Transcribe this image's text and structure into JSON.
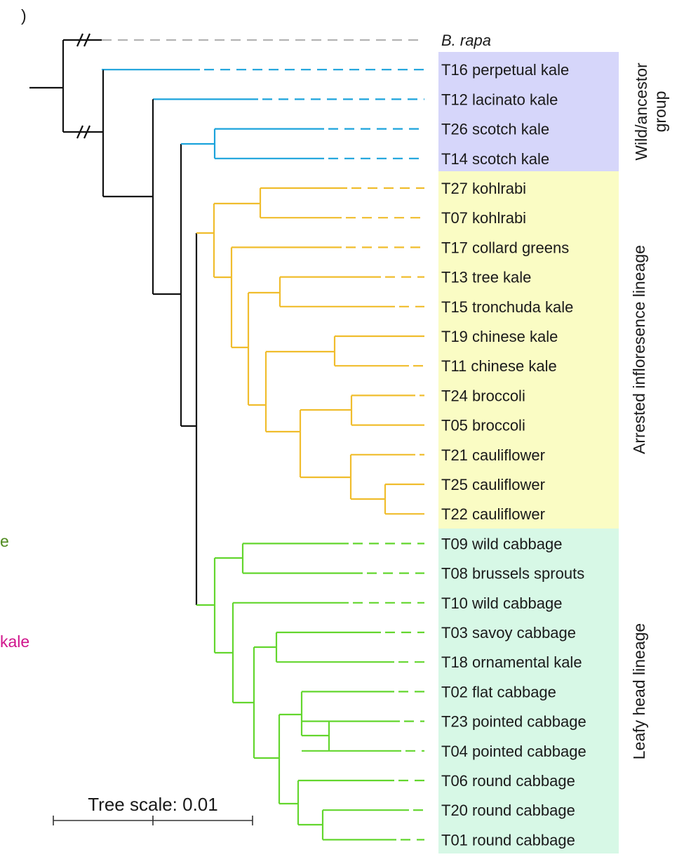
{
  "colors": {
    "outgroup": "#b3b3b3",
    "wild": "#1ba3dc",
    "arrested": "#f0bd2d",
    "leafy": "#63d62e",
    "trunk": "#111111",
    "band_wild": "#d6d6fa",
    "band_arrested": "#fafcc4",
    "band_leafy": "#d7f8e6",
    "cut_green": "#4f8a1f",
    "cut_magenta": "#d0148c"
  },
  "taxa": [
    {
      "label": "B. rapa",
      "italic": true,
      "group": "outgroup"
    },
    {
      "label": "T16 perpetual kale",
      "group": "wild"
    },
    {
      "label": "T12 lacinato kale",
      "group": "wild"
    },
    {
      "label": "T26 scotch kale",
      "group": "wild"
    },
    {
      "label": "T14 scotch kale",
      "group": "wild"
    },
    {
      "label": "T27 kohlrabi",
      "group": "arrested"
    },
    {
      "label": "T07 kohlrabi",
      "group": "arrested"
    },
    {
      "label": "T17 collard greens",
      "group": "arrested"
    },
    {
      "label": "T13 tree kale",
      "group": "arrested"
    },
    {
      "label": "T15 tronchuda kale",
      "group": "arrested"
    },
    {
      "label": "T19 chinese kale",
      "group": "arrested"
    },
    {
      "label": "T11 chinese kale",
      "group": "arrested"
    },
    {
      "label": "T24 broccoli",
      "group": "arrested"
    },
    {
      "label": "T05 broccoli",
      "group": "arrested"
    },
    {
      "label": "T21 cauliflower",
      "group": "arrested"
    },
    {
      "label": "T25 cauliflower",
      "group": "arrested"
    },
    {
      "label": "T22 cauliflower",
      "group": "arrested"
    },
    {
      "label": "T09 wild cabbage",
      "group": "leafy"
    },
    {
      "label": "T08 brussels sprouts",
      "group": "leafy"
    },
    {
      "label": "T10 wild cabbage",
      "group": "leafy"
    },
    {
      "label": "T03 savoy cabbage",
      "group": "leafy"
    },
    {
      "label": "T18 ornamental kale",
      "group": "leafy"
    },
    {
      "label": "T02 flat cabbage",
      "group": "leafy"
    },
    {
      "label": "T23 pointed cabbage",
      "group": "leafy"
    },
    {
      "label": "T04 pointed cabbage",
      "group": "leafy"
    },
    {
      "label": "T06 round cabbage",
      "group": "leafy"
    },
    {
      "label": "T20 round cabbage",
      "group": "leafy"
    },
    {
      "label": "T01 round cabbage",
      "group": "leafy"
    }
  ],
  "groups": {
    "wild": {
      "lines": [
        "Wild/ancestor",
        "group"
      ]
    },
    "arrested": {
      "lines": [
        "Arrested infloresence lineage"
      ]
    },
    "leafy": {
      "lines": [
        "Leafy head lineage"
      ]
    }
  },
  "scale": {
    "label": "Tree scale: 0.01",
    "value": 0.01
  },
  "cut_off": {
    "top": ")",
    "green": "e",
    "magenta": "kale"
  }
}
